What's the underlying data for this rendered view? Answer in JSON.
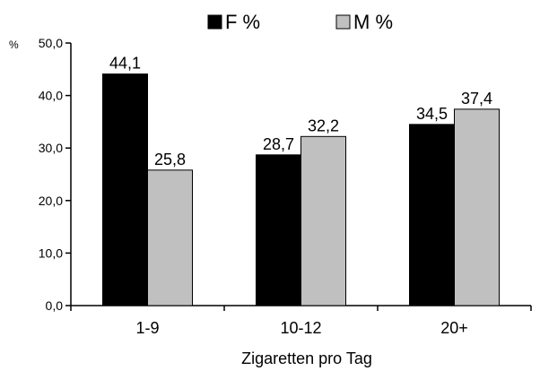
{
  "chart_data": {
    "type": "bar",
    "categories": [
      "1-9",
      "10-12",
      "20+"
    ],
    "series": [
      {
        "name": "F %",
        "values": [
          44.1,
          28.7,
          34.5
        ],
        "labels": [
          "44,1",
          "28,7",
          "34,5"
        ],
        "color": "#000000"
      },
      {
        "name": "M %",
        "values": [
          25.8,
          32.2,
          37.4
        ],
        "labels": [
          "25,8",
          "32,2",
          "37,4"
        ],
        "color": "#c0c0c0"
      }
    ],
    "xlabel": "Zigaretten pro Tag",
    "ylabel": "%",
    "ylim": [
      0,
      50
    ],
    "yticks": [
      "0,0",
      "10,0",
      "20,0",
      "30,0",
      "40,0",
      "50,0"
    ],
    "grid": false,
    "legend_position": "top-center"
  }
}
